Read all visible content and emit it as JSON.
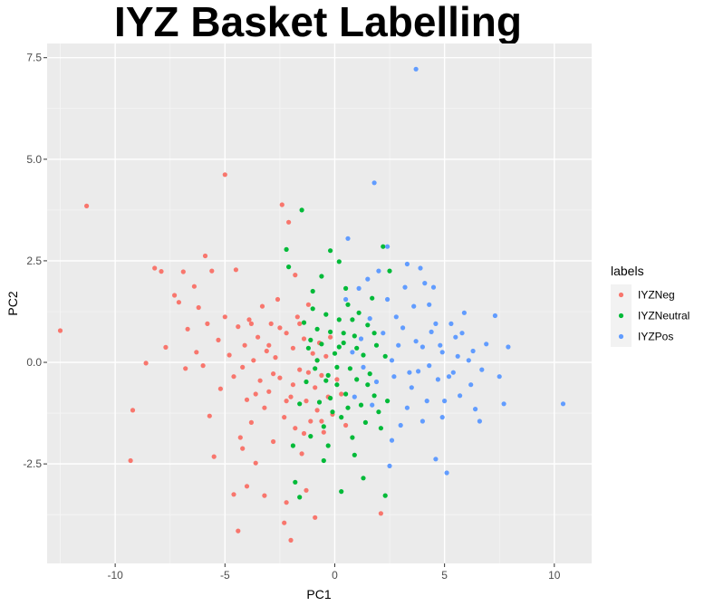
{
  "chart_data": {
    "type": "scatter",
    "title": "IYZ Basket Labelling",
    "xlabel": "PC1",
    "ylabel": "PC2",
    "xlim": [
      -13.1,
      11.7
    ],
    "ylim": [
      -4.95,
      7.85
    ],
    "x_ticks": [
      -10,
      -5,
      0,
      5,
      10
    ],
    "x_tick_labels": [
      "-10",
      "-5",
      "0",
      "5",
      "10"
    ],
    "y_ticks": [
      -2.5,
      0,
      2.5,
      5,
      7.5
    ],
    "y_tick_labels": [
      "-2.5",
      "0.0",
      "2.5",
      "5.0",
      "7.5"
    ],
    "grid": true,
    "legend_position": "right",
    "legend_title": "labels",
    "series": [
      {
        "name": "IYZNeg",
        "color": "#f8766d",
        "points": [
          [
            -12.5,
            0.78
          ],
          [
            -11.3,
            3.85
          ],
          [
            -9.3,
            -2.42
          ],
          [
            -9.2,
            -1.18
          ],
          [
            -8.6,
            -0.02
          ],
          [
            -8.2,
            2.32
          ],
          [
            -7.9,
            2.24
          ],
          [
            -7.7,
            0.37
          ],
          [
            -7.3,
            1.65
          ],
          [
            -7.1,
            1.48
          ],
          [
            -6.9,
            2.23
          ],
          [
            -6.8,
            -0.15
          ],
          [
            -6.7,
            0.82
          ],
          [
            -6.4,
            1.87
          ],
          [
            -6.3,
            0.25
          ],
          [
            -6.2,
            1.35
          ],
          [
            -6.0,
            -0.08
          ],
          [
            -5.9,
            2.62
          ],
          [
            -5.8,
            0.95
          ],
          [
            -5.7,
            -1.32
          ],
          [
            -5.6,
            2.25
          ],
          [
            -5.5,
            -2.32
          ],
          [
            -5.3,
            0.55
          ],
          [
            -5.2,
            -0.65
          ],
          [
            -5.0,
            1.12
          ],
          [
            -5.0,
            4.62
          ],
          [
            -4.8,
            0.18
          ],
          [
            -4.6,
            -0.35
          ],
          [
            -4.5,
            2.28
          ],
          [
            -4.4,
            0.88
          ],
          [
            -4.3,
            -1.85
          ],
          [
            -4.2,
            -2.12
          ],
          [
            -4.1,
            0.42
          ],
          [
            -4.0,
            -0.92
          ],
          [
            -3.9,
            1.05
          ],
          [
            -3.8,
            -1.48
          ],
          [
            -3.7,
            0.05
          ],
          [
            -3.6,
            -2.48
          ],
          [
            -3.5,
            0.62
          ],
          [
            -3.4,
            -0.45
          ],
          [
            -3.3,
            1.38
          ],
          [
            -3.2,
            -1.12
          ],
          [
            -3.1,
            0.28
          ],
          [
            -3.0,
            -0.72
          ],
          [
            -2.9,
            0.95
          ],
          [
            -2.8,
            -1.95
          ],
          [
            -2.7,
            0.12
          ],
          [
            -2.6,
            1.55
          ],
          [
            -2.5,
            -0.38
          ],
          [
            -2.4,
            3.88
          ],
          [
            -2.3,
            -1.35
          ],
          [
            -2.2,
            0.72
          ],
          [
            -2.1,
            3.45
          ],
          [
            -2.0,
            -0.85
          ],
          [
            -1.9,
            0.35
          ],
          [
            -1.8,
            -1.62
          ],
          [
            -1.7,
            1.12
          ],
          [
            -1.6,
            -0.18
          ],
          [
            -1.5,
            -2.25
          ],
          [
            -1.4,
            0.58
          ],
          [
            -1.3,
            -0.95
          ],
          [
            -1.2,
            1.42
          ],
          [
            -1.1,
            -1.45
          ],
          [
            -1.0,
            0.22
          ],
          [
            -0.9,
            -0.62
          ],
          [
            -0.8,
            -1.18
          ],
          [
            -0.7,
            0.48
          ],
          [
            -0.6,
            -0.32
          ],
          [
            -0.5,
            -1.72
          ],
          [
            -0.4,
            0.15
          ],
          [
            -0.3,
            -0.85
          ],
          [
            -0.2,
            0.62
          ],
          [
            -0.1,
            -1.28
          ],
          [
            0.1,
            -0.42
          ],
          [
            0.3,
            -0.78
          ],
          [
            0.5,
            -1.55
          ],
          [
            -2.2,
            -3.45
          ],
          [
            -3.2,
            -3.28
          ],
          [
            -4.0,
            -3.05
          ],
          [
            -4.6,
            -3.25
          ],
          [
            -4.4,
            -4.15
          ],
          [
            -2.3,
            -3.95
          ],
          [
            -2.0,
            -4.38
          ],
          [
            -1.3,
            -3.15
          ],
          [
            -0.9,
            -3.82
          ],
          [
            2.1,
            -3.72
          ],
          [
            -3.8,
            0.95
          ],
          [
            -4.2,
            -0.12
          ],
          [
            -3.6,
            -0.78
          ],
          [
            -2.8,
            -0.28
          ],
          [
            -2.5,
            0.85
          ],
          [
            -1.9,
            -0.55
          ],
          [
            -1.6,
            0.95
          ],
          [
            -1.2,
            -0.25
          ],
          [
            -0.8,
            0.05
          ],
          [
            -3.0,
            0.42
          ],
          [
            -2.2,
            -0.95
          ],
          [
            -1.4,
            -1.75
          ],
          [
            -0.6,
            -1.45
          ],
          [
            -1.8,
            2.15
          ]
        ]
      },
      {
        "name": "IYZNeutral",
        "color": "#00ba38",
        "points": [
          [
            -1.5,
            3.75
          ],
          [
            -2.2,
            2.78
          ],
          [
            -2.1,
            2.35
          ],
          [
            -1.9,
            -2.05
          ],
          [
            -1.6,
            -1.02
          ],
          [
            -1.4,
            0.98
          ],
          [
            -1.3,
            -0.48
          ],
          [
            -1.2,
            0.35
          ],
          [
            -1.1,
            -1.82
          ],
          [
            -1.0,
            1.32
          ],
          [
            -0.9,
            -0.15
          ],
          [
            -0.8,
            0.82
          ],
          [
            -0.7,
            -0.98
          ],
          [
            -0.6,
            0.45
          ],
          [
            -0.5,
            -1.58
          ],
          [
            -0.4,
            1.18
          ],
          [
            -0.3,
            -0.32
          ],
          [
            -0.2,
            0.75
          ],
          [
            -0.1,
            -1.22
          ],
          [
            0.0,
            0.22
          ],
          [
            0.1,
            -0.55
          ],
          [
            0.2,
            1.05
          ],
          [
            0.3,
            -1.35
          ],
          [
            0.4,
            0.48
          ],
          [
            0.5,
            -0.78
          ],
          [
            0.6,
            1.42
          ],
          [
            0.7,
            -0.15
          ],
          [
            0.8,
            -1.85
          ],
          [
            0.9,
            0.65
          ],
          [
            1.0,
            -0.42
          ],
          [
            1.1,
            1.22
          ],
          [
            1.2,
            -1.05
          ],
          [
            1.3,
            0.18
          ],
          [
            1.4,
            -1.48
          ],
          [
            1.5,
            0.92
          ],
          [
            1.6,
            -0.28
          ],
          [
            1.7,
            1.58
          ],
          [
            1.8,
            -0.82
          ],
          [
            1.9,
            0.42
          ],
          [
            2.0,
            -1.22
          ],
          [
            2.2,
            2.85
          ],
          [
            2.5,
            2.25
          ],
          [
            2.1,
            -1.62
          ],
          [
            2.3,
            0.15
          ],
          [
            2.4,
            -0.95
          ],
          [
            -0.2,
            2.75
          ],
          [
            0.2,
            2.48
          ],
          [
            -0.6,
            2.12
          ],
          [
            0.5,
            1.82
          ],
          [
            -1.0,
            1.75
          ],
          [
            -1.8,
            -2.95
          ],
          [
            -1.6,
            -3.32
          ],
          [
            -0.5,
            -2.42
          ],
          [
            0.3,
            -3.18
          ],
          [
            1.3,
            -2.85
          ],
          [
            2.3,
            -3.28
          ],
          [
            -0.3,
            -2.05
          ],
          [
            0.9,
            -2.28
          ],
          [
            -0.8,
            0.05
          ],
          [
            0.1,
            -0.12
          ],
          [
            0.4,
            0.72
          ],
          [
            -0.2,
            -0.88
          ],
          [
            1.0,
            0.35
          ],
          [
            0.6,
            -1.12
          ],
          [
            -1.1,
            0.55
          ],
          [
            1.5,
            -0.55
          ],
          [
            0.8,
            1.05
          ],
          [
            -0.4,
            -0.45
          ],
          [
            0.2,
            0.38
          ],
          [
            1.8,
            0.72
          ]
        ]
      },
      {
        "name": "IYZPos",
        "color": "#619cff",
        "points": [
          [
            3.7,
            7.22
          ],
          [
            1.8,
            4.42
          ],
          [
            0.6,
            3.05
          ],
          [
            2.4,
            2.85
          ],
          [
            3.3,
            2.42
          ],
          [
            3.9,
            2.32
          ],
          [
            4.1,
            1.95
          ],
          [
            4.3,
            1.42
          ],
          [
            4.6,
            0.95
          ],
          [
            4.9,
            0.25
          ],
          [
            5.2,
            -0.35
          ],
          [
            5.5,
            0.62
          ],
          [
            5.7,
            -0.82
          ],
          [
            5.9,
            1.22
          ],
          [
            6.1,
            0.05
          ],
          [
            6.4,
            -1.15
          ],
          [
            6.6,
            -1.45
          ],
          [
            6.9,
            0.45
          ],
          [
            7.5,
            -0.35
          ],
          [
            7.9,
            0.38
          ],
          [
            7.3,
            1.15
          ],
          [
            7.7,
            -1.02
          ],
          [
            10.4,
            -1.02
          ],
          [
            5.1,
            -2.72
          ],
          [
            4.6,
            -2.38
          ],
          [
            4.9,
            -1.35
          ],
          [
            2.5,
            -2.55
          ],
          [
            2.6,
            -1.92
          ],
          [
            3.0,
            -1.55
          ],
          [
            3.3,
            -1.12
          ],
          [
            3.5,
            -0.62
          ],
          [
            3.8,
            -0.22
          ],
          [
            4.0,
            0.38
          ],
          [
            4.2,
            -0.95
          ],
          [
            4.4,
            0.75
          ],
          [
            4.7,
            -0.42
          ],
          [
            5.3,
            0.95
          ],
          [
            5.6,
            0.15
          ],
          [
            6.2,
            -0.55
          ],
          [
            3.2,
            1.85
          ],
          [
            2.8,
            1.12
          ],
          [
            2.9,
            0.42
          ],
          [
            2.7,
            -0.35
          ],
          [
            3.6,
            1.38
          ],
          [
            4.5,
            1.85
          ],
          [
            0.5,
            1.55
          ],
          [
            0.8,
            0.25
          ],
          [
            1.1,
            1.82
          ],
          [
            1.3,
            -0.12
          ],
          [
            1.6,
            1.08
          ],
          [
            1.9,
            -0.48
          ],
          [
            2.2,
            0.72
          ],
          [
            2.4,
            1.55
          ],
          [
            2.0,
            2.25
          ],
          [
            1.5,
            2.05
          ],
          [
            0.9,
            -0.85
          ],
          [
            1.2,
            0.58
          ],
          [
            1.7,
            -1.05
          ],
          [
            2.6,
            0.05
          ],
          [
            3.1,
            0.85
          ],
          [
            3.4,
            -0.25
          ],
          [
            3.7,
            0.52
          ],
          [
            4.0,
            -1.45
          ],
          [
            4.3,
            -0.08
          ],
          [
            4.8,
            0.42
          ],
          [
            5.0,
            -0.95
          ],
          [
            5.4,
            -0.25
          ],
          [
            5.8,
            0.72
          ],
          [
            6.3,
            0.28
          ],
          [
            6.7,
            -0.18
          ]
        ]
      }
    ]
  }
}
